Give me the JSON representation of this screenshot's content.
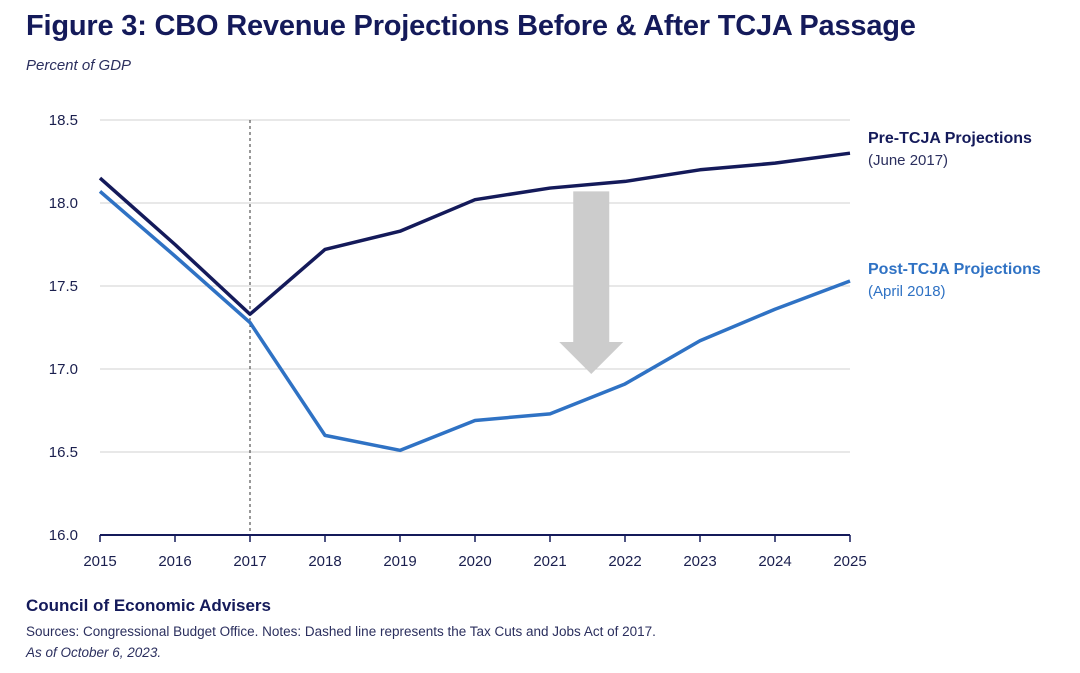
{
  "title": "Figure 3: CBO Revenue Projections Before & After TCJA Passage",
  "subtitle": "Percent of GDP",
  "legend": {
    "pre": {
      "name": "Pre-TCJA Projections",
      "date": "(June 2017)"
    },
    "post": {
      "name": "Post-TCJA Projections",
      "date": "(April 2018)"
    }
  },
  "footer": {
    "org": "Council of Economic Advisers",
    "notes": "Sources: Congressional Budget Office.  Notes: Dashed line represents the Tax Cuts and Jobs Act of 2017.",
    "as_of": "As of October 6, 2023."
  },
  "colors": {
    "pre": "#141a5a",
    "post": "#2f72c4",
    "arrow": "#cccccc",
    "grid": "#d0d0d0",
    "axis": "#141a5a"
  },
  "chart_data": {
    "type": "line",
    "title": "Figure 3: CBO Revenue Projections Before & After TCJA Passage",
    "ylabel": "Percent of GDP",
    "xlabel": "",
    "x": [
      2015,
      2016,
      2017,
      2018,
      2019,
      2020,
      2021,
      2022,
      2023,
      2024,
      2025
    ],
    "ylim": [
      16.0,
      18.5
    ],
    "yticks": [
      "16.0",
      "16.5",
      "17.0",
      "17.5",
      "18.0",
      "18.5"
    ],
    "xticks": [
      "2015",
      "2016",
      "2017",
      "2018",
      "2019",
      "2020",
      "2021",
      "2022",
      "2023",
      "2024",
      "2025"
    ],
    "vline_x": 2017,
    "series": [
      {
        "name": "Pre-TCJA Projections (June 2017)",
        "values": [
          18.15,
          17.75,
          17.33,
          17.72,
          17.83,
          18.02,
          18.09,
          18.13,
          18.2,
          18.24,
          18.3
        ]
      },
      {
        "name": "Post-TCJA Projections (April 2018)",
        "values": [
          18.07,
          17.68,
          17.28,
          16.6,
          16.51,
          16.69,
          16.73,
          16.91,
          17.17,
          17.36,
          17.53
        ]
      }
    ],
    "annotation": {
      "type": "down-arrow",
      "x": 2021.55,
      "from": 18.07,
      "to": 16.97
    }
  }
}
